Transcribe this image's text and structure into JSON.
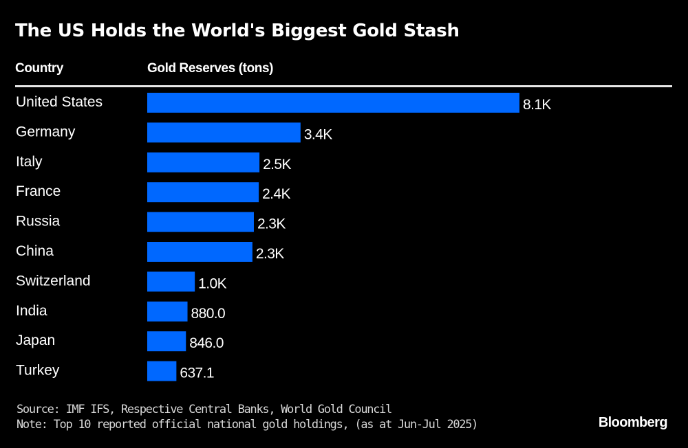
{
  "chart_data": {
    "type": "bar",
    "orientation": "horizontal",
    "title": "The US Holds the World's Biggest Gold Stash",
    "column_headers": {
      "category": "Country",
      "value": "Gold Reserves (tons)"
    },
    "categories": [
      "United States",
      "Germany",
      "Italy",
      "France",
      "Russia",
      "China",
      "Switzerland",
      "India",
      "Japan",
      "Turkey"
    ],
    "values": [
      8133.5,
      3350.3,
      2451.8,
      2437.0,
      2330.0,
      2298.5,
      1040.0,
      880.0,
      846.0,
      637.1
    ],
    "value_labels": [
      "8.1K",
      "3.4K",
      "2.5K",
      "2.4K",
      "2.3K",
      "2.3K",
      "1.0K",
      "880.0",
      "846.0",
      "637.1"
    ],
    "xlim": [
      0,
      8133.5
    ],
    "grid": false,
    "legend": "none",
    "bar_color": "#0068ff",
    "source": "Source: IMF IFS, Respective Central Banks, World Gold Council",
    "note": "Note: Top 10 reported official national gold holdings, (as at Jun-Jul 2025)",
    "brand": "Bloomberg"
  }
}
